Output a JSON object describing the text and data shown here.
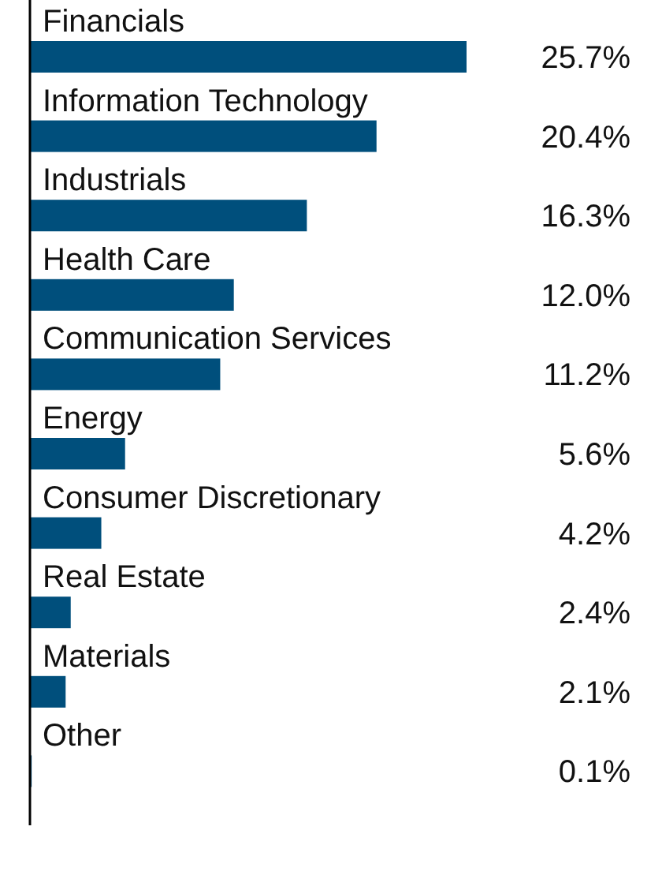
{
  "chart_data": {
    "type": "bar",
    "orientation": "horizontal",
    "relative": false,
    "data_labels": true,
    "categories": [
      "Financials",
      "Information Technology",
      "Industrials",
      "Health Care",
      "Communication Services",
      "Energy",
      "Consumer Discretionary",
      "Real Estate",
      "Materials",
      "Other"
    ],
    "values": [
      25.7,
      20.4,
      16.3,
      12.0,
      11.2,
      5.6,
      4.2,
      2.4,
      2.1,
      0.1
    ],
    "value_labels": [
      "25.7%",
      "20.4%",
      "16.3%",
      "12.0%",
      "11.2%",
      "5.6%",
      "4.2%",
      "2.4%",
      "2.1%",
      "0.1%"
    ],
    "color": "#004f7c"
  }
}
